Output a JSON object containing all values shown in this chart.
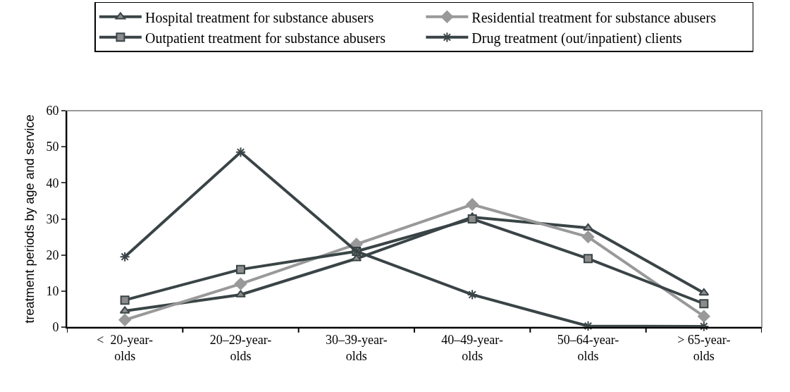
{
  "chart_data": {
    "type": "line",
    "ylabel": "treatment periods by age and service",
    "categories": [
      "<  20-year-olds",
      "20–29-year-olds",
      "30–39-year-olds",
      "40–49-year-olds",
      "50–64-year-olds",
      "> 65-year-olds"
    ],
    "series": [
      {
        "name": "Hospital treatment for substance abusers",
        "color": "#3a4446",
        "marker": "triangle",
        "values": [
          4.5,
          9,
          19,
          30.5,
          27.5,
          9.5
        ]
      },
      {
        "name": "Residential treatment for substance abusers",
        "color": "#999999",
        "marker": "diamond",
        "values": [
          2,
          12,
          23,
          34,
          25,
          3
        ]
      },
      {
        "name": "Outpatient treatment for substance abusers",
        "color": "#3a4446",
        "marker": "square",
        "values": [
          7.5,
          16,
          21,
          30,
          19,
          6.5
        ]
      },
      {
        "name": "Drug treatment (out/inpatient) clients",
        "color": "#3a4446",
        "marker": "cross",
        "values": [
          19.5,
          48.5,
          21,
          9,
          0.3,
          0.2
        ]
      }
    ],
    "ylim": [
      0,
      60
    ],
    "yticks": [
      0,
      10,
      20,
      30,
      40,
      50,
      60
    ],
    "grid": false,
    "legend": "top",
    "line_style": "solid"
  }
}
